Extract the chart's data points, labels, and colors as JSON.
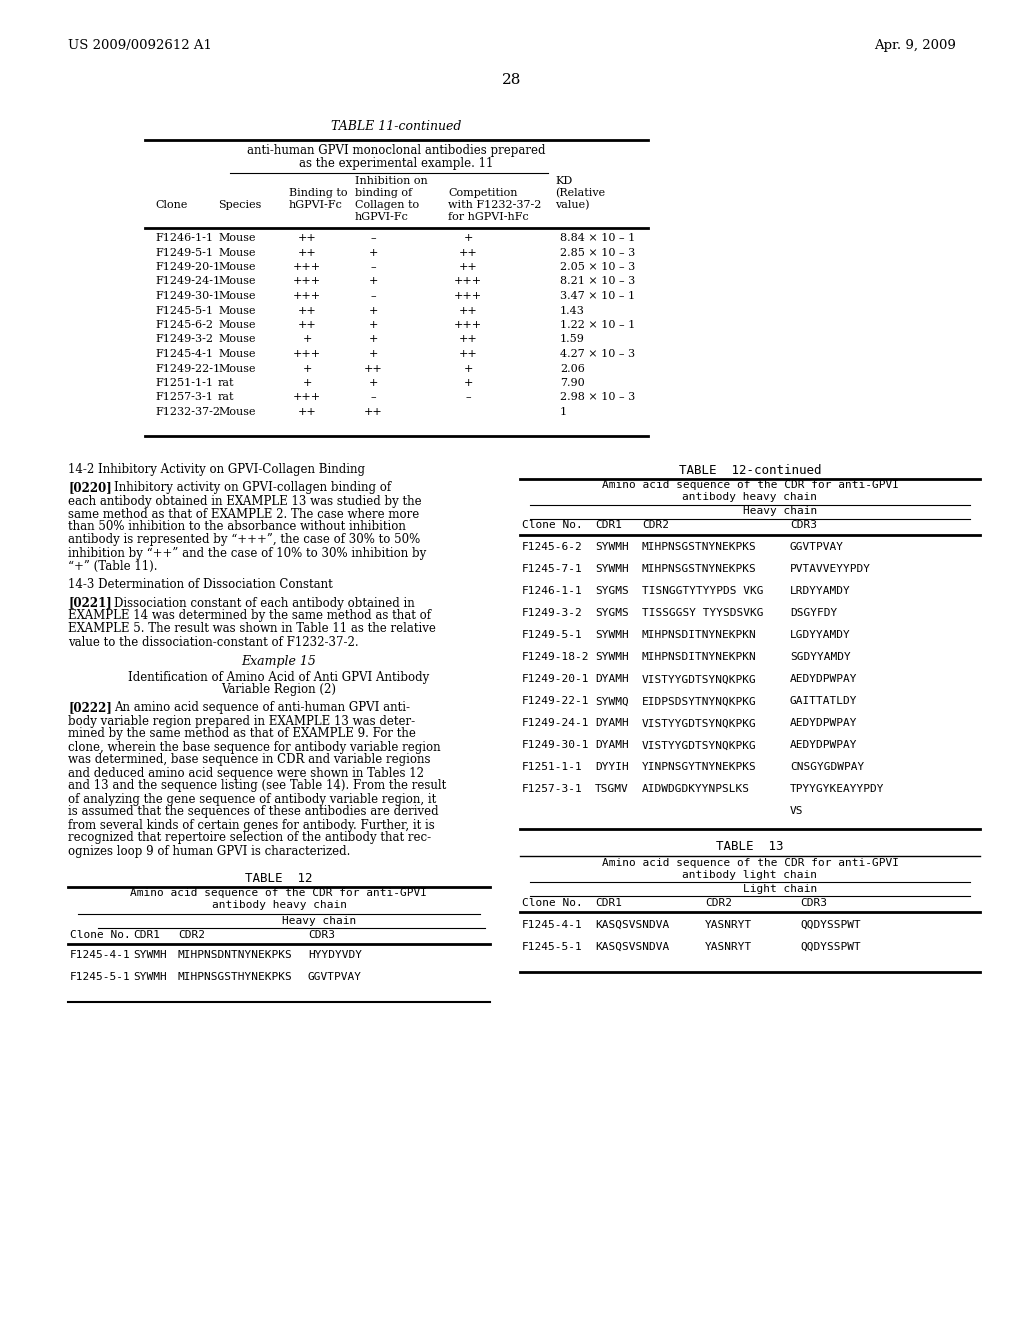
{
  "bg_color": "#ffffff",
  "header_left": "US 2009/0092612 A1",
  "header_right": "Apr. 9, 2009",
  "page_number": "28",
  "table11_data": [
    [
      "F1246-1-1",
      "Mouse",
      "++",
      "–",
      "+",
      "8.84 × 10 – 1"
    ],
    [
      "F1249-5-1",
      "Mouse",
      "++",
      "+",
      "++",
      "2.85 × 10 – 3"
    ],
    [
      "F1249-20-1",
      "Mouse",
      "+++",
      "–",
      "++",
      "2.05 × 10 – 3"
    ],
    [
      "F1249-24-1",
      "Mouse",
      "+++",
      "+",
      "+++",
      "8.21 × 10 – 3"
    ],
    [
      "F1249-30-1",
      "Mouse",
      "+++",
      "–",
      "+++",
      "3.47 × 10 – 1"
    ],
    [
      "F1245-5-1",
      "Mouse",
      "++",
      "+",
      "++",
      "1.43"
    ],
    [
      "F1245-6-2",
      "Mouse",
      "++",
      "+",
      "+++",
      "1.22 × 10 – 1"
    ],
    [
      "F1249-3-2",
      "Mouse",
      "+",
      "+",
      "++",
      "1.59"
    ],
    [
      "F1245-4-1",
      "Mouse",
      "+++",
      "+",
      "++",
      "4.27 × 10 – 3"
    ],
    [
      "F1249-22-1",
      "Mouse",
      "+",
      "++",
      "+",
      "2.06"
    ],
    [
      "F1251-1-1",
      "rat",
      "+",
      "+",
      "+",
      "7.90"
    ],
    [
      "F1257-3-1",
      "rat",
      "+++",
      "–",
      "–",
      "2.98 × 10 – 3"
    ],
    [
      "F1232-37-2",
      "Mouse",
      "++",
      "++",
      "",
      "1"
    ]
  ],
  "table12c_data": [
    [
      "F1245-6-2",
      "SYWMH",
      "MIHPNSGSTNYNEKPKS",
      "GGVTPVAY"
    ],
    [
      "F1245-7-1",
      "SYWMH",
      "MIHPNSGSTNYNEKPKS",
      "PVTAVVEYYPDY"
    ],
    [
      "F1246-1-1",
      "SYGMS",
      "TISNGGTYTYYPDS VKG",
      "LRDYYAMDY"
    ],
    [
      "F1249-3-2",
      "SYGMS",
      "TISSGGSY TYYSDSVKG",
      "DSGYFDY"
    ],
    [
      "F1249-5-1",
      "SYWMH",
      "MIHPNSDITNYNEKPKN",
      "LGDYYAMDY"
    ],
    [
      "F1249-18-2",
      "SYWMH",
      "MIHPNSDITNYNEKPKN",
      "SGDYYAMDY"
    ],
    [
      "F1249-20-1",
      "DYAMH",
      "VISTYYGDTSYNQKPKG",
      "AEDYDPWPAY"
    ],
    [
      "F1249-22-1",
      "SYWMQ",
      "EIDPSDSYTNYNQKPKG",
      "GAITTATLDY"
    ],
    [
      "F1249-24-1",
      "DYAMH",
      "VISTYYGDTSYNQKPKG",
      "AEDYDPWPAY"
    ],
    [
      "F1249-30-1",
      "DYAMH",
      "VISTYYGDTSYNQKPKG",
      "AEDYDPWPAY"
    ],
    [
      "F1251-1-1",
      "DYYIH",
      "YINPNSGYTNYNEKPKS",
      "CNSGYGDWPAY"
    ],
    [
      "F1257-3-1",
      "TSGMV",
      "AIDWDGDKYYNPSLKS",
      "TPYYGYKEAYYPDY"
    ]
  ],
  "table12_data": [
    [
      "F1245-4-1",
      "SYWMH",
      "MIHPNSDNTNYNEKPKS",
      "HYYDYVDY"
    ],
    [
      "F1245-5-1",
      "SYWMH",
      "MIHPNSGSTHYNEKPKS",
      "GGVTPVAY"
    ]
  ],
  "table13_data": [
    [
      "F1245-4-1",
      "KASQSVSNDVA",
      "YASNRYT",
      "QQDYSSPWT"
    ],
    [
      "F1245-5-1",
      "KASQSVSNDVA",
      "YASNRYT",
      "QQDYSSPWT"
    ]
  ]
}
